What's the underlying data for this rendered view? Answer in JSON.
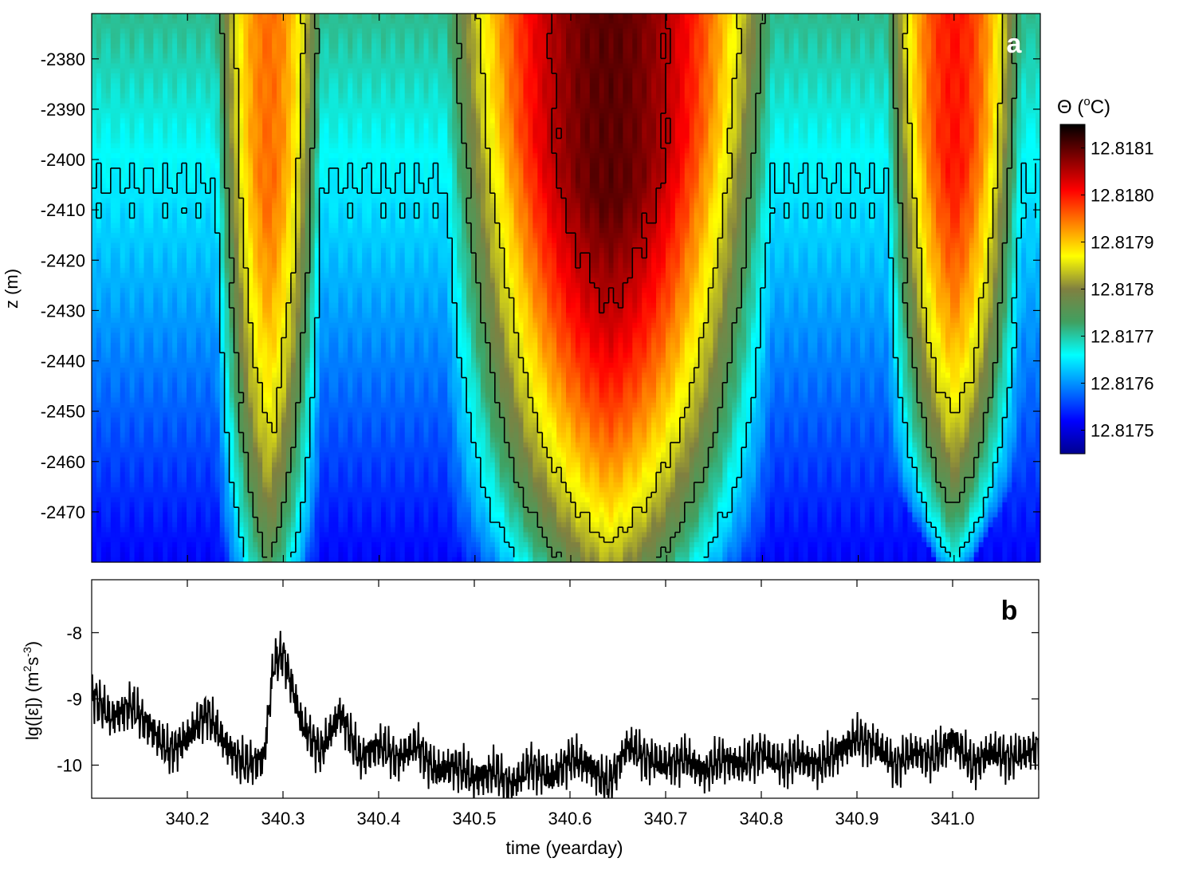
{
  "chart_data": [
    {
      "panel_label": "a",
      "type": "heatmap",
      "title": "",
      "xlabel": "",
      "ylabel": "z (m)",
      "xlim": [
        340.1,
        341.09
      ],
      "ylim": [
        -2480,
        -2371
      ],
      "y_ticks": [
        -2380,
        -2390,
        -2400,
        -2410,
        -2420,
        -2430,
        -2440,
        -2450,
        -2460,
        -2470
      ],
      "colorbar": {
        "label": "Θ (°C)",
        "label_parts": {
          "symbol": "Θ",
          "open": " (",
          "sup": "o",
          "unit": "C)"
        },
        "range": [
          12.81745,
          12.81815
        ],
        "ticks": [
          "12.8175",
          "12.8176",
          "12.8177",
          "12.8178",
          "12.8179",
          "12.8180",
          "12.8181"
        ],
        "tick_values": [
          12.8175,
          12.8176,
          12.8177,
          12.8178,
          12.8179,
          12.818,
          12.8181
        ],
        "colormap": [
          "#00008f",
          "#0000ff",
          "#0080ff",
          "#00ffff",
          "#40a060",
          "#808040",
          "#ffff00",
          "#ff8000",
          "#ff0000",
          "#800000",
          "#000000"
        ]
      },
      "warm_intrusions": [
        {
          "center": 340.285,
          "half_width": 0.055,
          "bottom_depth": -2478,
          "peak": 12.81795
        },
        {
          "center": 340.64,
          "half_width": 0.17,
          "bottom_depth": -2478,
          "peak": 12.8181
        },
        {
          "center": 341.0,
          "half_width": 0.07,
          "bottom_depth": -2462,
          "peak": 12.818
        }
      ],
      "contour_levels": [
        12.81765,
        12.81775,
        12.81785,
        12.81805
      ]
    },
    {
      "panel_label": "b",
      "type": "line",
      "title": "",
      "xlabel": "time (yearday)",
      "ylabel": "lg([ε]) (m²s⁻³)",
      "ylabel_parts": {
        "prefix": "lg([ε]) (m",
        "sup1": "2",
        "mid": "s",
        "sup2": "-3",
        "suffix": ")"
      },
      "xlim": [
        340.1,
        341.09
      ],
      "ylim": [
        -10.5,
        -7.2
      ],
      "x_ticks": [
        "340.2",
        "340.3",
        "340.4",
        "340.5",
        "340.6",
        "340.7",
        "340.8",
        "340.9",
        "341.0"
      ],
      "x_tick_values": [
        340.2,
        340.3,
        340.4,
        340.5,
        340.6,
        340.7,
        340.8,
        340.9,
        341.0
      ],
      "y_ticks": [
        "-8",
        "-9",
        "-10"
      ],
      "y_tick_values": [
        -8,
        -9,
        -10
      ],
      "series": [
        {
          "x": [
            340.1,
            340.12,
            340.14,
            340.16,
            340.18,
            340.2,
            340.22,
            340.24,
            340.26,
            340.28,
            340.29,
            340.3,
            340.32,
            340.34,
            340.36,
            340.38,
            340.4,
            340.42,
            340.44,
            340.46,
            340.48,
            340.5,
            340.52,
            340.54,
            340.56,
            340.58,
            340.6,
            340.62,
            340.64,
            340.66,
            340.68,
            340.7,
            340.72,
            340.74,
            340.76,
            340.78,
            340.8,
            340.82,
            340.84,
            340.86,
            340.88,
            340.9,
            340.92,
            340.94,
            340.96,
            340.98,
            341.0,
            341.02,
            341.04,
            341.06,
            341.08,
            341.09
          ],
          "values": [
            -8.9,
            -9.3,
            -9.1,
            -9.4,
            -9.8,
            -9.6,
            -9.2,
            -9.7,
            -10.0,
            -9.9,
            -8.5,
            -8.3,
            -9.4,
            -9.8,
            -9.2,
            -9.9,
            -9.7,
            -9.9,
            -9.7,
            -10.1,
            -10.0,
            -10.2,
            -10.1,
            -10.3,
            -10.0,
            -10.2,
            -9.9,
            -10.0,
            -10.3,
            -9.7,
            -9.9,
            -10.0,
            -9.9,
            -10.1,
            -9.9,
            -10.0,
            -9.8,
            -10.0,
            -9.9,
            -10.0,
            -9.8,
            -9.6,
            -9.7,
            -10.0,
            -9.8,
            -9.9,
            -9.6,
            -10.0,
            -9.8,
            -9.9,
            -9.8,
            -9.7
          ]
        }
      ]
    }
  ]
}
